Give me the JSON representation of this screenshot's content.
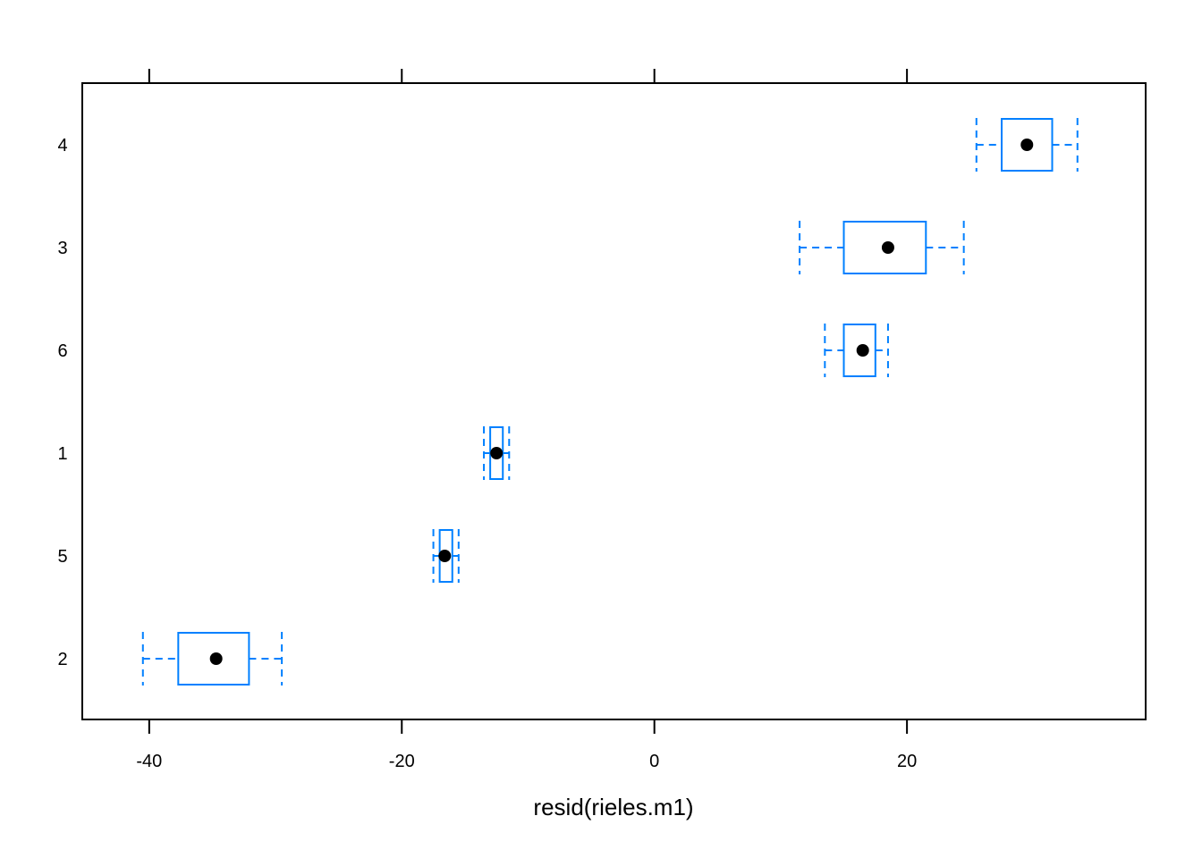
{
  "chart_data": {
    "type": "boxplot",
    "orientation": "horizontal",
    "title": "",
    "xlabel": "resid(rieles.m1)",
    "ylabel": "",
    "xlim": [
      -45.3,
      38.9
    ],
    "x_ticks": [
      -40,
      -20,
      0,
      20
    ],
    "x_tick_labels": [
      "-40",
      "-20",
      "0",
      "20"
    ],
    "categories": [
      "2",
      "5",
      "1",
      "6",
      "3",
      "4"
    ],
    "boxes": [
      {
        "category": "2",
        "whisker_low": -40.5,
        "q1": -37.7,
        "median": -34.7,
        "q3": -32.1,
        "whisker_high": -29.5
      },
      {
        "category": "5",
        "whisker_low": -17.5,
        "q1": -17.0,
        "median": -16.6,
        "q3": -16.0,
        "whisker_high": -15.5
      },
      {
        "category": "1",
        "whisker_low": -13.5,
        "q1": -13.0,
        "median": -12.5,
        "q3": -12.0,
        "whisker_high": -11.5
      },
      {
        "category": "6",
        "whisker_low": 13.5,
        "q1": 15.0,
        "median": 16.5,
        "q3": 17.5,
        "whisker_high": 18.5
      },
      {
        "category": "3",
        "whisker_low": 11.5,
        "q1": 15.0,
        "median": 18.5,
        "q3": 21.5,
        "whisker_high": 24.5
      },
      {
        "category": "4",
        "whisker_low": 25.5,
        "q1": 27.5,
        "median": 29.5,
        "q3": 31.5,
        "whisker_high": 33.5
      }
    ],
    "colors": {
      "box": "#0080ff",
      "median_dot": "#000000",
      "frame": "#000000"
    },
    "grid": false,
    "legend": "none"
  }
}
